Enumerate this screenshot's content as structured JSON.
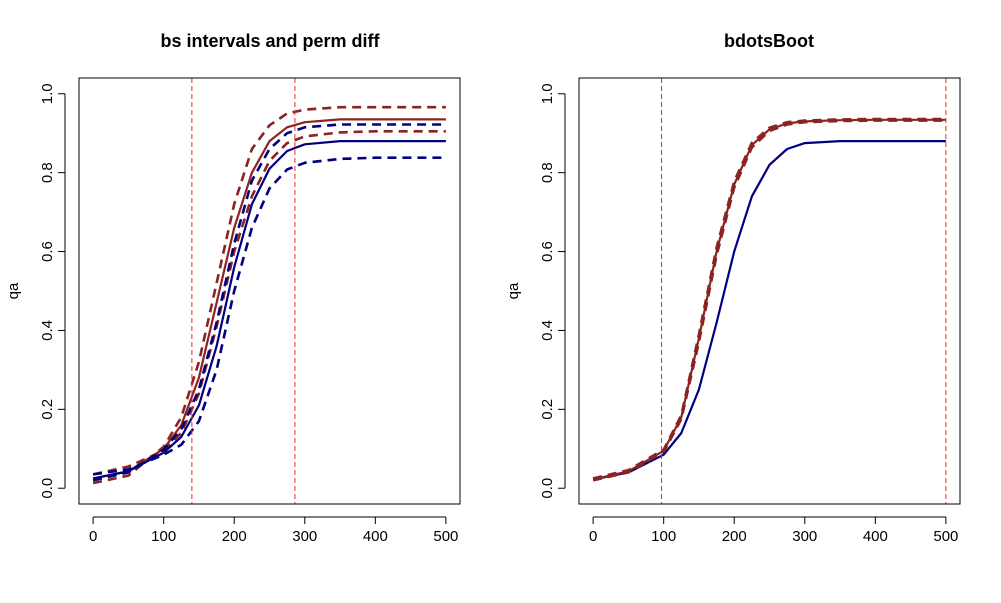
{
  "chart_data": [
    {
      "type": "line",
      "title": "bs intervals and perm diff",
      "xlabel": "",
      "ylabel": "qa",
      "xlim": [
        -20,
        520
      ],
      "ylim": [
        -0.04,
        1.04
      ],
      "xticks": [
        "0",
        "100",
        "200",
        "300",
        "400",
        "500"
      ],
      "yticks": [
        "0.0",
        "0.2",
        "0.4",
        "0.6",
        "0.8",
        "1.0"
      ],
      "vlines": [
        140,
        286
      ],
      "vline_color": "#e03030",
      "series": [
        {
          "color": "#8b2323",
          "style": "solid",
          "x": [
            0,
            50,
            100,
            125,
            150,
            175,
            200,
            225,
            250,
            275,
            300,
            350,
            400,
            450,
            500
          ],
          "y": [
            0.025,
            0.043,
            0.1,
            0.16,
            0.28,
            0.47,
            0.66,
            0.8,
            0.88,
            0.915,
            0.928,
            0.935,
            0.935,
            0.935,
            0.935
          ]
        },
        {
          "color": "#8b2323",
          "style": "dashed",
          "x": [
            0,
            50,
            100,
            125,
            150,
            175,
            200,
            225,
            250,
            275,
            300,
            350,
            400,
            450,
            500
          ],
          "y": [
            0.013,
            0.032,
            0.105,
            0.18,
            0.32,
            0.52,
            0.72,
            0.86,
            0.92,
            0.95,
            0.96,
            0.966,
            0.966,
            0.966,
            0.966
          ]
        },
        {
          "color": "#8b2323",
          "style": "dashed",
          "x": [
            0,
            50,
            100,
            125,
            150,
            175,
            200,
            225,
            250,
            275,
            300,
            350,
            400,
            450,
            500
          ],
          "y": [
            0.035,
            0.055,
            0.095,
            0.14,
            0.24,
            0.41,
            0.6,
            0.74,
            0.83,
            0.875,
            0.892,
            0.902,
            0.905,
            0.905,
            0.905
          ]
        },
        {
          "color": "#000080",
          "style": "solid",
          "x": [
            0,
            50,
            100,
            125,
            150,
            175,
            200,
            225,
            250,
            275,
            300,
            350,
            400,
            450,
            500
          ],
          "y": [
            0.025,
            0.043,
            0.09,
            0.13,
            0.21,
            0.36,
            0.56,
            0.72,
            0.81,
            0.855,
            0.872,
            0.88,
            0.88,
            0.88,
            0.88
          ]
        },
        {
          "color": "#000080",
          "style": "dashed",
          "x": [
            0,
            50,
            100,
            125,
            150,
            175,
            200,
            225,
            250,
            275,
            300,
            350,
            400,
            450,
            500
          ],
          "y": [
            0.02,
            0.04,
            0.098,
            0.15,
            0.25,
            0.42,
            0.62,
            0.78,
            0.86,
            0.9,
            0.915,
            0.922,
            0.922,
            0.922,
            0.922
          ]
        },
        {
          "color": "#000080",
          "style": "dashed",
          "x": [
            0,
            50,
            100,
            125,
            150,
            175,
            200,
            225,
            250,
            275,
            300,
            350,
            400,
            450,
            500
          ],
          "y": [
            0.035,
            0.048,
            0.085,
            0.11,
            0.17,
            0.3,
            0.5,
            0.66,
            0.76,
            0.808,
            0.825,
            0.835,
            0.838,
            0.838,
            0.838
          ]
        }
      ]
    },
    {
      "type": "line",
      "title": "bdotsBoot",
      "xlabel": "",
      "ylabel": "qa",
      "xlim": [
        -20,
        520
      ],
      "ylim": [
        -0.04,
        1.04
      ],
      "xticks": [
        "0",
        "100",
        "200",
        "300",
        "400",
        "500"
      ],
      "yticks": [
        "0.0",
        "0.2",
        "0.4",
        "0.6",
        "0.8",
        "1.0"
      ],
      "vlines": [
        97,
        500
      ],
      "vline_color": "#e03030",
      "series": [
        {
          "color": "#000080",
          "style": "solid",
          "x": [
            0,
            50,
            100,
            125,
            150,
            175,
            200,
            225,
            250,
            275,
            300,
            350,
            400,
            450,
            500
          ],
          "y": [
            0.022,
            0.04,
            0.085,
            0.14,
            0.25,
            0.42,
            0.6,
            0.74,
            0.82,
            0.86,
            0.875,
            0.88,
            0.88,
            0.88,
            0.88
          ]
        },
        {
          "color": "#8b2323",
          "style": "solid",
          "x": [
            0,
            50,
            100,
            125,
            150,
            175,
            200,
            225,
            250,
            275,
            300,
            350,
            400,
            450,
            500
          ],
          "y": [
            0.022,
            0.043,
            0.095,
            0.18,
            0.38,
            0.6,
            0.77,
            0.87,
            0.91,
            0.925,
            0.93,
            0.933,
            0.934,
            0.934,
            0.934
          ]
        },
        {
          "color": "#8b2323",
          "style": "dashed",
          "x": [
            0,
            50,
            100,
            125,
            150,
            175,
            200,
            225,
            250,
            275,
            300,
            350,
            400,
            450,
            500
          ],
          "y": [
            0.02,
            0.04,
            0.092,
            0.175,
            0.37,
            0.59,
            0.762,
            0.864,
            0.906,
            0.922,
            0.928,
            0.931,
            0.932,
            0.932,
            0.932
          ]
        },
        {
          "color": "#8b2323",
          "style": "dashed",
          "x": [
            0,
            50,
            100,
            125,
            150,
            175,
            200,
            225,
            250,
            275,
            300,
            350,
            400,
            450,
            500
          ],
          "y": [
            0.025,
            0.046,
            0.098,
            0.185,
            0.39,
            0.61,
            0.778,
            0.876,
            0.914,
            0.928,
            0.932,
            0.935,
            0.936,
            0.936,
            0.936
          ]
        }
      ]
    }
  ]
}
